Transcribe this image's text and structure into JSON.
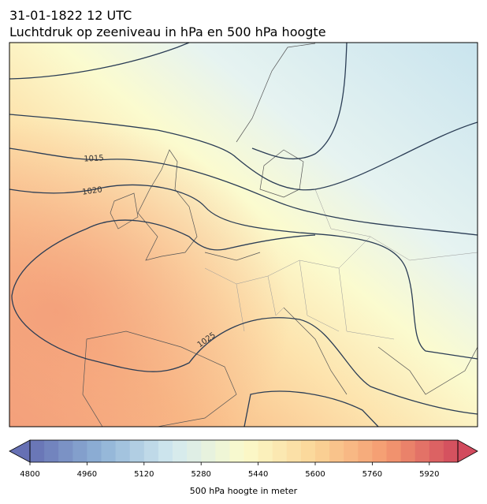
{
  "header": {
    "title": "31-01-1822 12 UTC",
    "subtitle": "Luchtdruk op zeeniveau in hPa en 500 hPa hoogte"
  },
  "map": {
    "contour_labels": [
      1015,
      1020,
      1025
    ]
  },
  "colorbar": {
    "label": "500 hPa hoogte in meter",
    "range": [
      4800,
      6000
    ],
    "step": 40,
    "ticks": [
      4800,
      4960,
      5120,
      5280,
      5440,
      5600,
      5760,
      5920
    ],
    "colors": [
      "#6670b4",
      "#8fb3d6",
      "#d3e9f0",
      "#fbfbcb",
      "#fbd597",
      "#f49a70",
      "#d24a5d"
    ]
  }
}
